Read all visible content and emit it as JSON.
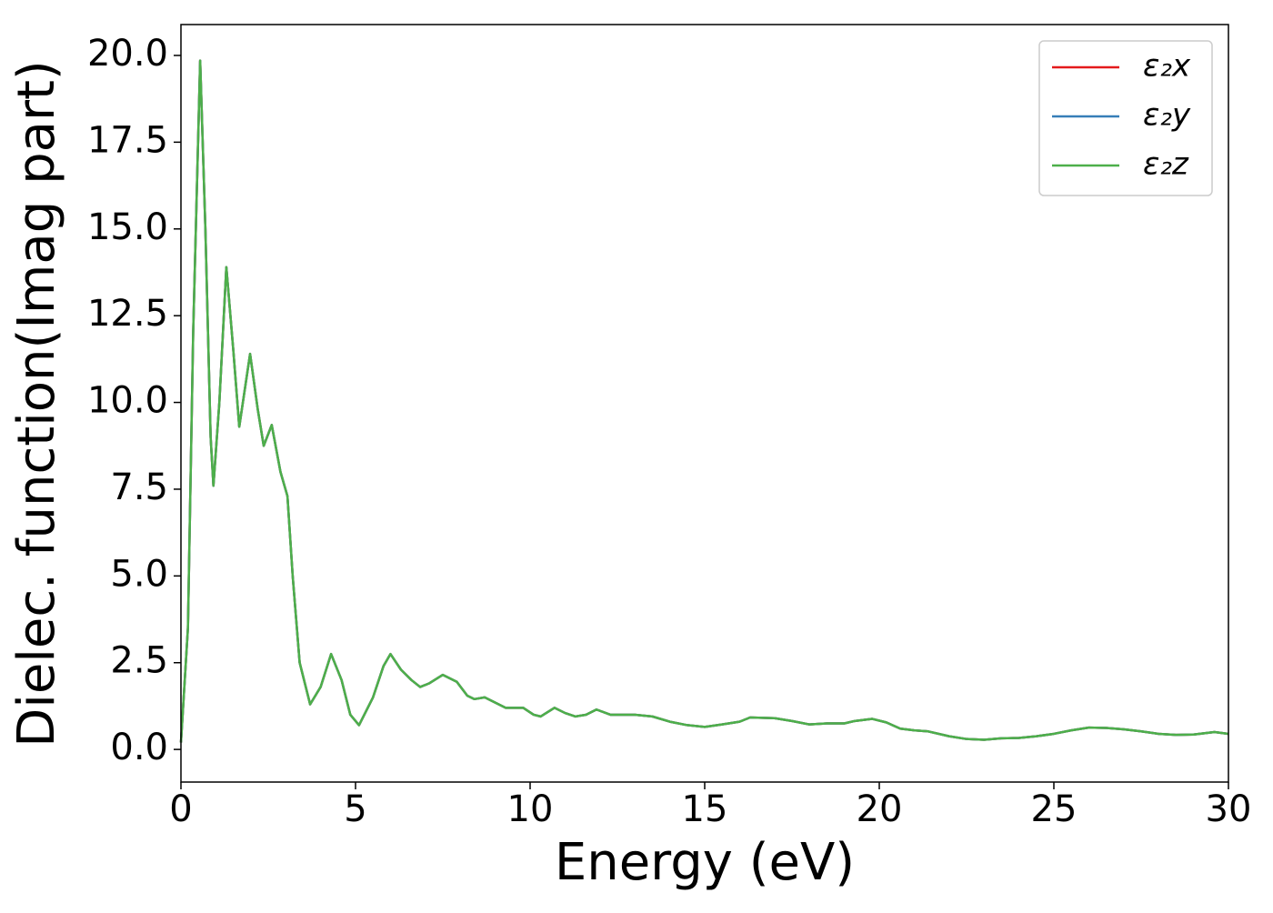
{
  "chart_data": {
    "type": "line",
    "xlabel": "Energy (eV)",
    "ylabel": "Dielec. function(Imag part)",
    "xlim": [
      0,
      30
    ],
    "ylim": [
      -0.94,
      20.89
    ],
    "xticks": [
      0,
      5,
      10,
      15,
      20,
      25,
      30
    ],
    "yticks": [
      {
        "value": 0,
        "label": "0.0"
      },
      2.5,
      {
        "value": 5,
        "label": "5.0"
      },
      7.5,
      {
        "value": 10,
        "label": "10.0"
      },
      12.5,
      {
        "value": 15,
        "label": "15.0"
      },
      17.5,
      {
        "value": 20,
        "label": "20.0"
      }
    ],
    "legend": "upper right",
    "x": [
      0,
      0.2,
      0.35,
      0.55,
      0.7,
      0.85,
      0.93,
      1.1,
      1.3,
      1.5,
      1.67,
      1.98,
      2.2,
      2.37,
      2.6,
      2.85,
      3.05,
      3.2,
      3.4,
      3.7,
      4.0,
      4.3,
      4.6,
      4.85,
      5.1,
      5.5,
      5.8,
      6.0,
      6.3,
      6.6,
      6.85,
      7.1,
      7.5,
      7.9,
      8.2,
      8.4,
      8.7,
      9.0,
      9.3,
      9.6,
      9.8,
      10.1,
      10.3,
      10.7,
      11.0,
      11.3,
      11.6,
      11.9,
      12.3,
      13,
      13.5,
      14,
      14.5,
      15,
      15.5,
      16,
      16.3,
      17,
      17.5,
      18,
      18.5,
      19,
      19.3,
      19.8,
      20.2,
      20.6,
      21,
      21.4,
      22,
      22.5,
      23,
      23.5,
      24,
      24.5,
      25,
      25.5,
      26,
      26.5,
      27,
      27.5,
      28,
      28.5,
      29,
      29.6,
      30
    ],
    "series": [
      {
        "name": "ε₂x",
        "color": "#e41a1c",
        "values": [
          0.2,
          3.5,
          12,
          19.85,
          15,
          9,
          7.6,
          10,
          13.9,
          11.5,
          9.3,
          11.4,
          9.8,
          8.75,
          9.35,
          8.0,
          7.3,
          5.0,
          2.5,
          1.3,
          1.8,
          2.75,
          2.0,
          1.0,
          0.7,
          1.5,
          2.4,
          2.75,
          2.3,
          2.0,
          1.8,
          1.9,
          2.15,
          1.95,
          1.55,
          1.45,
          1.5,
          1.35,
          1.2,
          1.2,
          1.2,
          1.0,
          0.95,
          1.2,
          1.05,
          0.95,
          1.0,
          1.15,
          1.0,
          1.0,
          0.95,
          0.8,
          0.7,
          0.65,
          0.72,
          0.8,
          0.92,
          0.9,
          0.82,
          0.72,
          0.75,
          0.75,
          0.82,
          0.88,
          0.78,
          0.6,
          0.55,
          0.52,
          0.38,
          0.3,
          0.28,
          0.32,
          0.33,
          0.38,
          0.45,
          0.55,
          0.63,
          0.62,
          0.58,
          0.52,
          0.45,
          0.42,
          0.43,
          0.5,
          0.45
        ]
      },
      {
        "name": "ε₂y",
        "color": "#377eb8",
        "values": [
          0.2,
          3.5,
          12,
          19.85,
          15,
          9,
          7.6,
          10,
          13.9,
          11.5,
          9.3,
          11.4,
          9.8,
          8.75,
          9.35,
          8.0,
          7.3,
          5.0,
          2.5,
          1.3,
          1.8,
          2.75,
          2.0,
          1.0,
          0.7,
          1.5,
          2.4,
          2.75,
          2.3,
          2.0,
          1.8,
          1.9,
          2.15,
          1.95,
          1.55,
          1.45,
          1.5,
          1.35,
          1.2,
          1.2,
          1.2,
          1.0,
          0.95,
          1.2,
          1.05,
          0.95,
          1.0,
          1.15,
          1.0,
          1.0,
          0.95,
          0.8,
          0.7,
          0.65,
          0.72,
          0.8,
          0.92,
          0.9,
          0.82,
          0.72,
          0.75,
          0.75,
          0.82,
          0.88,
          0.78,
          0.6,
          0.55,
          0.52,
          0.38,
          0.3,
          0.28,
          0.32,
          0.33,
          0.38,
          0.45,
          0.55,
          0.63,
          0.62,
          0.58,
          0.52,
          0.45,
          0.42,
          0.43,
          0.5,
          0.45
        ]
      },
      {
        "name": "ε₂z",
        "color": "#4daf4a",
        "values": [
          0.2,
          3.5,
          12,
          19.85,
          15,
          9,
          7.6,
          10,
          13.9,
          11.5,
          9.3,
          11.4,
          9.8,
          8.75,
          9.35,
          8.0,
          7.3,
          5.0,
          2.5,
          1.3,
          1.8,
          2.75,
          2.0,
          1.0,
          0.7,
          1.5,
          2.4,
          2.75,
          2.3,
          2.0,
          1.8,
          1.9,
          2.15,
          1.95,
          1.55,
          1.45,
          1.5,
          1.35,
          1.2,
          1.2,
          1.2,
          1.0,
          0.95,
          1.2,
          1.05,
          0.95,
          1.0,
          1.15,
          1.0,
          1.0,
          0.95,
          0.8,
          0.7,
          0.65,
          0.72,
          0.8,
          0.92,
          0.9,
          0.82,
          0.72,
          0.75,
          0.75,
          0.82,
          0.88,
          0.78,
          0.6,
          0.55,
          0.52,
          0.38,
          0.3,
          0.28,
          0.32,
          0.33,
          0.38,
          0.45,
          0.55,
          0.63,
          0.62,
          0.58,
          0.52,
          0.45,
          0.42,
          0.43,
          0.5,
          0.45
        ]
      }
    ]
  }
}
